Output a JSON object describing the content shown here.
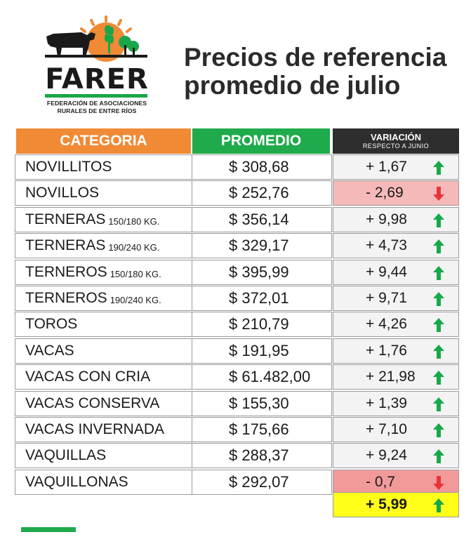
{
  "logo": {
    "brand": "FARER",
    "line1": "FEDERACIÓN DE ASOCIACIONES",
    "line2": "RURALES DE ENTRE RÍOS"
  },
  "title": {
    "line1": "Precios de referencia",
    "line2": "promedio de julio"
  },
  "table": {
    "headers": {
      "categoria": "CATEGORIA",
      "promedio": "PROMEDIO",
      "variacion": "VARIACIÓN",
      "variacion_sub": "RESPECTO A JUNIO"
    },
    "rows": [
      {
        "cat": "NOVILLITOS",
        "kg": "",
        "prom": "$ 308,68",
        "var": "+ 1,67",
        "dir": "up"
      },
      {
        "cat": "NOVILLOS",
        "kg": "",
        "prom": "$ 252,76",
        "var": "- 2,69",
        "dir": "down"
      },
      {
        "cat": "TERNERAS",
        "kg": "150/180 KG.",
        "prom": "$ 356,14",
        "var": "+ 9,98",
        "dir": "up"
      },
      {
        "cat": "TERNERAS",
        "kg": "190/240 KG.",
        "prom": "$ 329,17",
        "var": "+ 4,73",
        "dir": "up"
      },
      {
        "cat": "TERNEROS",
        "kg": "150/180 KG.",
        "prom": "$ 395,99",
        "var": "+ 9,44",
        "dir": "up"
      },
      {
        "cat": "TERNEROS",
        "kg": "190/240 KG.",
        "prom": "$ 372,01",
        "var": "+ 9,71",
        "dir": "up"
      },
      {
        "cat": "TOROS",
        "kg": "",
        "prom": "$ 210,79",
        "var": "+ 4,26",
        "dir": "up"
      },
      {
        "cat": "VACAS",
        "kg": "",
        "prom": "$ 191,95",
        "var": "+ 1,76",
        "dir": "up"
      },
      {
        "cat": "VACAS CON CRIA",
        "kg": "",
        "prom": "$ 61.482,00",
        "var": "+ 21,98",
        "dir": "up"
      },
      {
        "cat": "VACAS CONSERVA",
        "kg": "",
        "prom": "$ 155,30",
        "var": "+ 1,39",
        "dir": "up"
      },
      {
        "cat": "VACAS INVERNADA",
        "kg": "",
        "prom": "$ 175,66",
        "var": "+ 7,10",
        "dir": "up"
      },
      {
        "cat": "VAQUILLAS",
        "kg": "",
        "prom": "$ 288,37",
        "var": "+ 9,24",
        "dir": "up"
      },
      {
        "cat": "VAQUILLONAS",
        "kg": "",
        "prom": "$ 292,07",
        "var": "- 0,7",
        "dir": "down"
      }
    ],
    "total": "+ 5,99"
  },
  "colors": {
    "orange": "#f08a35",
    "green": "#1faa4b",
    "dark": "#2e2e2e",
    "up_arrow": "#17a84a",
    "down_arrow": "#e8343a",
    "highlight": "#ffff1a"
  }
}
